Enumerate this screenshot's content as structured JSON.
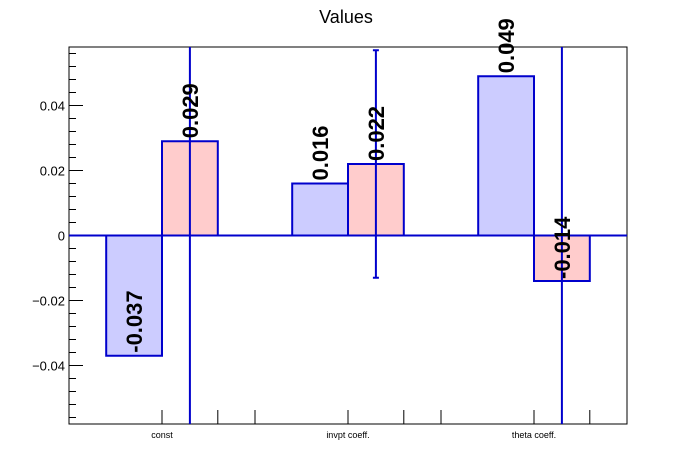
{
  "chart_data": {
    "type": "bar",
    "title": "Values",
    "xlabel": "",
    "ylabel": "",
    "categories": [
      "const",
      "invpt coeff.",
      "theta coeff."
    ],
    "series": [
      {
        "values": [
          -0.037,
          0.016,
          0.049
        ],
        "labels": [
          "-0.037",
          "0.016",
          "0.049"
        ],
        "fill": "#ccccff",
        "errors": [
          null,
          null,
          null
        ]
      },
      {
        "values": [
          0.029,
          0.022,
          -0.014
        ],
        "labels": [
          "0.029",
          "0.022",
          "-0.014"
        ],
        "fill": "#ffcccc",
        "errors": [
          0.15,
          0.035,
          0.15
        ]
      }
    ],
    "ylim": [
      -0.058,
      0.058
    ],
    "yticks": [
      -0.04,
      -0.02,
      0,
      0.02,
      0.04
    ],
    "ytick_labels": [
      "−0.04",
      "−0.02",
      "0",
      "0.02",
      "0.04"
    ],
    "grid": false,
    "legend": "none",
    "colors": {
      "stroke": "#0000cc",
      "axis": "#000000"
    }
  }
}
